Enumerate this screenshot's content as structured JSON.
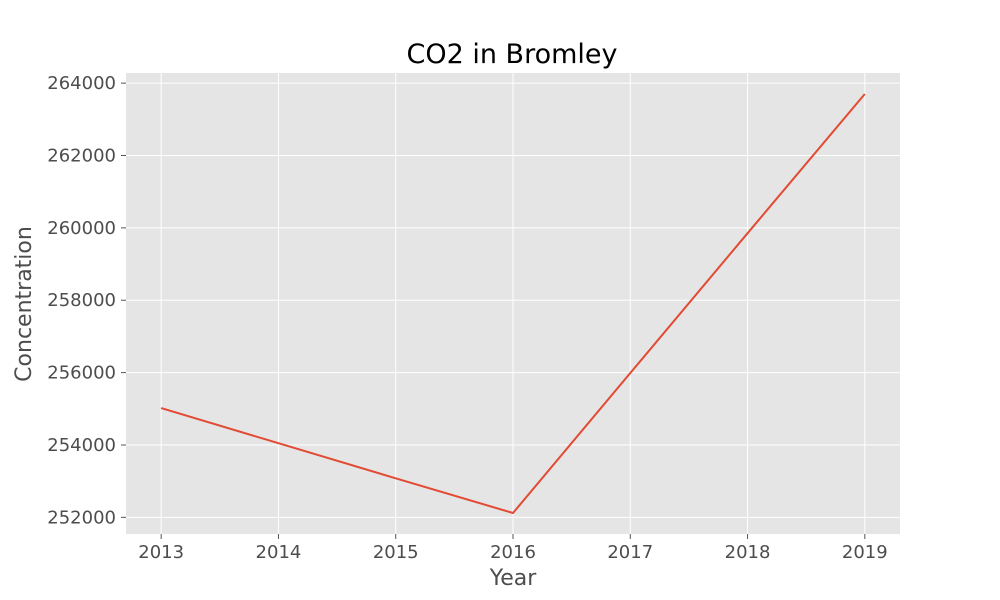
{
  "chart_data": {
    "type": "line",
    "title": "CO2 in Bromley",
    "xlabel": "Year",
    "ylabel": "Concentration",
    "x": [
      2013,
      2014,
      2015,
      2016,
      2017,
      2018,
      2019
    ],
    "series": [
      {
        "values": [
          255020,
          254050,
          253080,
          252120,
          255990,
          259850,
          263700
        ]
      }
    ],
    "xticks": [
      2013,
      2014,
      2015,
      2016,
      2017,
      2018,
      2019
    ],
    "yticks": [
      252000,
      254000,
      256000,
      258000,
      260000,
      262000,
      264000
    ],
    "xlim": [
      2012.7,
      2019.3
    ],
    "ylim": [
      251540,
      264280
    ],
    "grid": true,
    "colors": {
      "line": "#e24a33",
      "plot_bg": "#e5e5e5",
      "grid": "#ffffff",
      "text": "#4d4d4d",
      "tick": "#555555"
    }
  }
}
